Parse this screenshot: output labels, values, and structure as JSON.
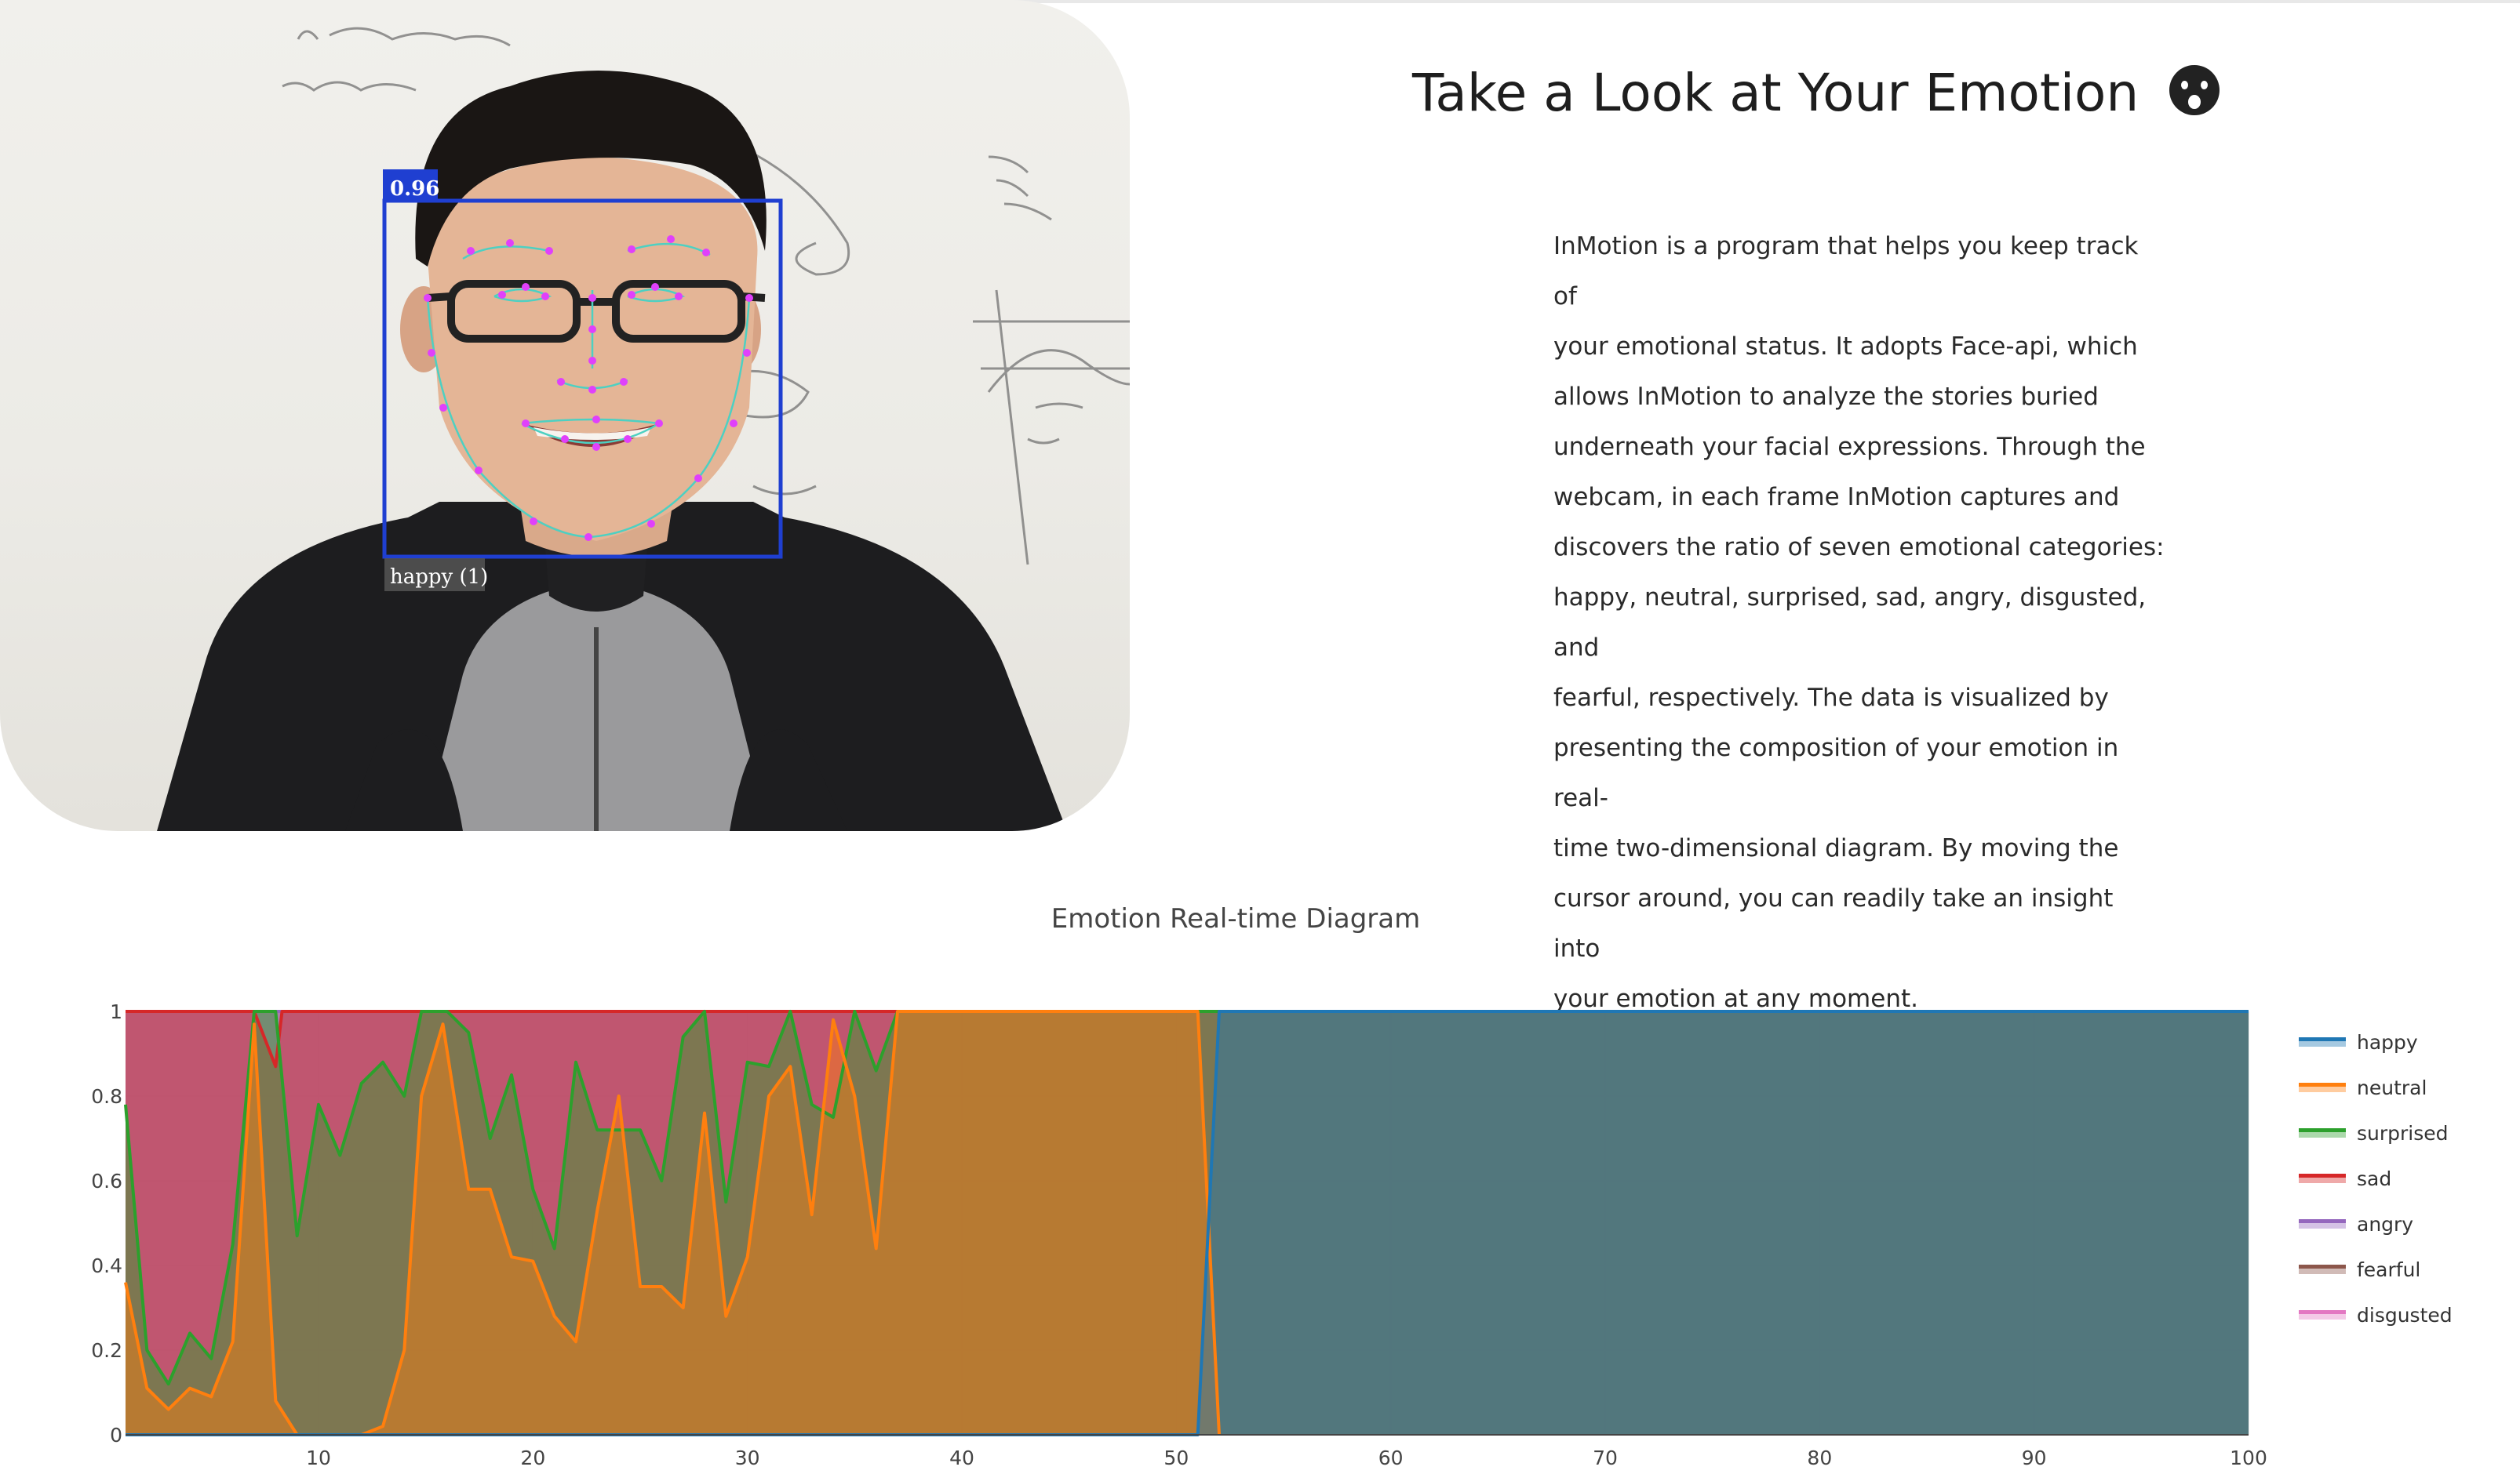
{
  "header": {
    "title": "Take a Look at Your Emotion",
    "emoji_icon": "hushed-face-emoji"
  },
  "webcam": {
    "detection_score": "0.96",
    "detection_label": "happy (1)",
    "box_color": "#1f3fd1",
    "landmark_color": "#e040fb"
  },
  "description": {
    "lines": [
      "InMotion is a program that helps you keep track of",
      "your emotional status. It adopts Face-api, which",
      "allows InMotion to analyze the stories buried",
      "underneath your facial expressions. Through the",
      "webcam, in each frame InMotion captures and",
      "discovers the ratio of seven emotional categories:",
      "happy, neutral, surprised, sad, angry, disgusted, and",
      "fearful, respectively. The data is visualized by",
      "presenting the composition of your emotion in real-",
      "time two-dimensional diagram. By moving the",
      "cursor around, you can readily take an insight into",
      "your emotion at any moment."
    ]
  },
  "chart_data": {
    "type": "area",
    "title": "Emotion Real-time Diagram",
    "xlabel": "",
    "ylabel": "",
    "xlim": [
      1,
      100
    ],
    "ylim": [
      0,
      1
    ],
    "x_ticks": [
      10,
      20,
      30,
      40,
      50,
      60,
      70,
      80,
      90,
      100
    ],
    "y_ticks": [
      0,
      0.2,
      0.4,
      0.6,
      0.8,
      1
    ],
    "y_tick_labels": [
      "0",
      "0.2",
      "0.4",
      "0.6",
      "0.8",
      "1"
    ],
    "grid": true,
    "stacked": true,
    "legend_position": "right",
    "series": [
      {
        "name": "happy",
        "color": "#1f77b4",
        "points": [
          [
            1,
            0
          ],
          [
            51,
            0
          ],
          [
            52,
            1
          ],
          [
            100,
            1
          ]
        ]
      },
      {
        "name": "neutral",
        "color": "#ff7f0e",
        "points": [
          [
            1,
            0.36
          ],
          [
            2,
            0.11
          ],
          [
            3,
            0.06
          ],
          [
            4,
            0.11
          ],
          [
            5,
            0.09
          ],
          [
            6,
            0.22
          ],
          [
            7,
            0.97
          ],
          [
            8,
            0.08
          ],
          [
            9,
            0
          ],
          [
            10,
            0
          ],
          [
            11,
            0
          ],
          [
            12,
            0
          ],
          [
            13,
            0.02
          ],
          [
            14,
            0.2
          ],
          [
            14.8,
            0.8
          ],
          [
            15.8,
            0.97
          ],
          [
            17,
            0.58
          ],
          [
            18,
            0.58
          ],
          [
            19,
            0.42
          ],
          [
            20,
            0.41
          ],
          [
            21,
            0.28
          ],
          [
            22,
            0.22
          ],
          [
            23,
            0.53
          ],
          [
            24,
            0.8
          ],
          [
            25,
            0.35
          ],
          [
            26,
            0.35
          ],
          [
            27,
            0.3
          ],
          [
            28,
            0.76
          ],
          [
            29,
            0.28
          ],
          [
            30,
            0.42
          ],
          [
            31,
            0.8
          ],
          [
            32,
            0.87
          ],
          [
            33,
            0.52
          ],
          [
            34,
            0.98
          ],
          [
            35,
            0.8
          ],
          [
            36,
            0.44
          ],
          [
            37,
            1
          ],
          [
            51,
            1
          ],
          [
            52,
            0
          ]
        ]
      },
      {
        "name": "surprised",
        "color": "#2ca02c",
        "points": [
          [
            1,
            0.78
          ],
          [
            2,
            0.2
          ],
          [
            3,
            0.12
          ],
          [
            4,
            0.24
          ],
          [
            5,
            0.18
          ],
          [
            6,
            0.45
          ],
          [
            7,
            1
          ],
          [
            8,
            1
          ],
          [
            9,
            0.47
          ],
          [
            10,
            0.78
          ],
          [
            11,
            0.66
          ],
          [
            12,
            0.83
          ],
          [
            13,
            0.88
          ],
          [
            14,
            0.8
          ],
          [
            14.8,
            1
          ],
          [
            16,
            1
          ],
          [
            17,
            0.95
          ],
          [
            18,
            0.7
          ],
          [
            19,
            0.85
          ],
          [
            20,
            0.58
          ],
          [
            21,
            0.44
          ],
          [
            22,
            0.88
          ],
          [
            23,
            0.72
          ],
          [
            24,
            0.72
          ],
          [
            25,
            0.72
          ],
          [
            26,
            0.6
          ],
          [
            27,
            0.94
          ],
          [
            28,
            1
          ],
          [
            29,
            0.55
          ],
          [
            30,
            0.88
          ],
          [
            31,
            0.87
          ],
          [
            32,
            1
          ],
          [
            33,
            0.78
          ],
          [
            34,
            0.75
          ],
          [
            35,
            1
          ],
          [
            36,
            0.86
          ],
          [
            37,
            1
          ],
          [
            100,
            1
          ]
        ]
      },
      {
        "name": "sad",
        "color": "#d62728",
        "points": [
          [
            1,
            1
          ],
          [
            7,
            1
          ],
          [
            8,
            0.87
          ],
          [
            8.3,
            1
          ],
          [
            100,
            1
          ]
        ]
      },
      {
        "name": "angry",
        "color": "#9467bd",
        "points": [
          [
            1,
            1
          ],
          [
            100,
            1
          ]
        ]
      },
      {
        "name": "fearful",
        "color": "#8c564b",
        "points": [
          [
            1,
            1
          ],
          [
            100,
            1
          ]
        ]
      },
      {
        "name": "disgusted",
        "color": "#e377c2",
        "points": [
          [
            1,
            1
          ],
          [
            100,
            1
          ]
        ]
      }
    ]
  }
}
